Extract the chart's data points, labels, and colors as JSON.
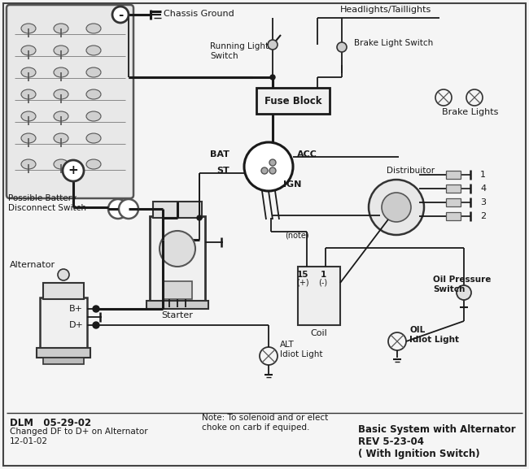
{
  "title": "Basic System with Alternator\nREV 5-23-04\n( With Ignition Switch)",
  "background_color": "#f5f5f5",
  "line_color": "#1a1a1a",
  "fig_width": 6.5,
  "fig_height": 5.77,
  "labels": {
    "chassis_ground": "Chassis Ground",
    "headlights": "Headlights/Taillights",
    "running_light_switch": "Running Light\nSwitch",
    "brake_light_switch": "Brake Light Switch",
    "fuse_block": "Fuse Block",
    "brake_lights": "Brake Lights",
    "bat": "BAT",
    "acc": "ACC",
    "st": "ST",
    "ign": "IGN",
    "distributor": "Distribuitor",
    "note": "(note)",
    "15_label": "15",
    "plus_label": "(+)",
    "1_label": "1",
    "minus_label": "(-)",
    "coil": "Coil",
    "oil_pressure": "Oil Pressure\nSwitch",
    "oil_idiot": "OIL\nIdiot Light",
    "alt_idiot": "ALT\nIdiot Light",
    "alternator": "Alternator",
    "b_plus": "B+",
    "d_plus": "D+",
    "starter": "Starter",
    "battery_disconnect": "Possible Battery\nDisconnect Switch",
    "dlm": "DLM   05-29-02",
    "changed": "Changed DF to D+ on Alternator\n12-01-02",
    "note_bottom": "Note: To solenoid and or elect\nchoke on carb if equiped.",
    "cylinder1": "1",
    "cylinder2": "2",
    "cylinder3": "3",
    "cylinder4": "4"
  }
}
